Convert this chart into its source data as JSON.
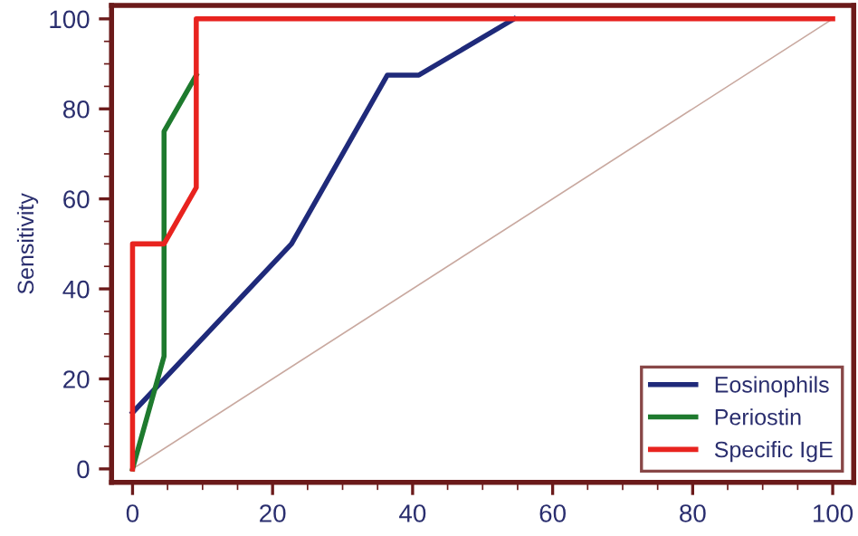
{
  "chart_data": {
    "type": "line",
    "ylabel": "Sensitivity",
    "xlim": [
      -3,
      103
    ],
    "ylim": [
      -3,
      103
    ],
    "xticks": [
      0,
      20,
      40,
      60,
      80,
      100
    ],
    "yticks": [
      0,
      20,
      40,
      60,
      80,
      100
    ],
    "grid": false,
    "legend": "bottom right",
    "marker": "none",
    "line_style": "solid",
    "series": [
      {
        "name": "Eosinophils",
        "color": "#1f2a7a",
        "x": [
          0,
          22.7,
          36.4,
          40.9,
          54.5
        ],
        "values": [
          12.5,
          50,
          87.5,
          87.5,
          100
        ]
      },
      {
        "name": "Periostin",
        "color": "#1e7a2e",
        "x": [
          0,
          4.5,
          4.5,
          9.1
        ],
        "values": [
          0,
          25,
          75,
          87.5
        ]
      },
      {
        "name": "Specific IgE",
        "color": "#e8231f",
        "x": [
          0,
          0,
          4.5,
          9.1,
          9.1,
          100
        ],
        "values": [
          0,
          50,
          50,
          62.5,
          100,
          100
        ]
      },
      {
        "color": "#c9a9a0",
        "x": [
          0,
          100
        ],
        "values": [
          0,
          100
        ]
      }
    ]
  }
}
